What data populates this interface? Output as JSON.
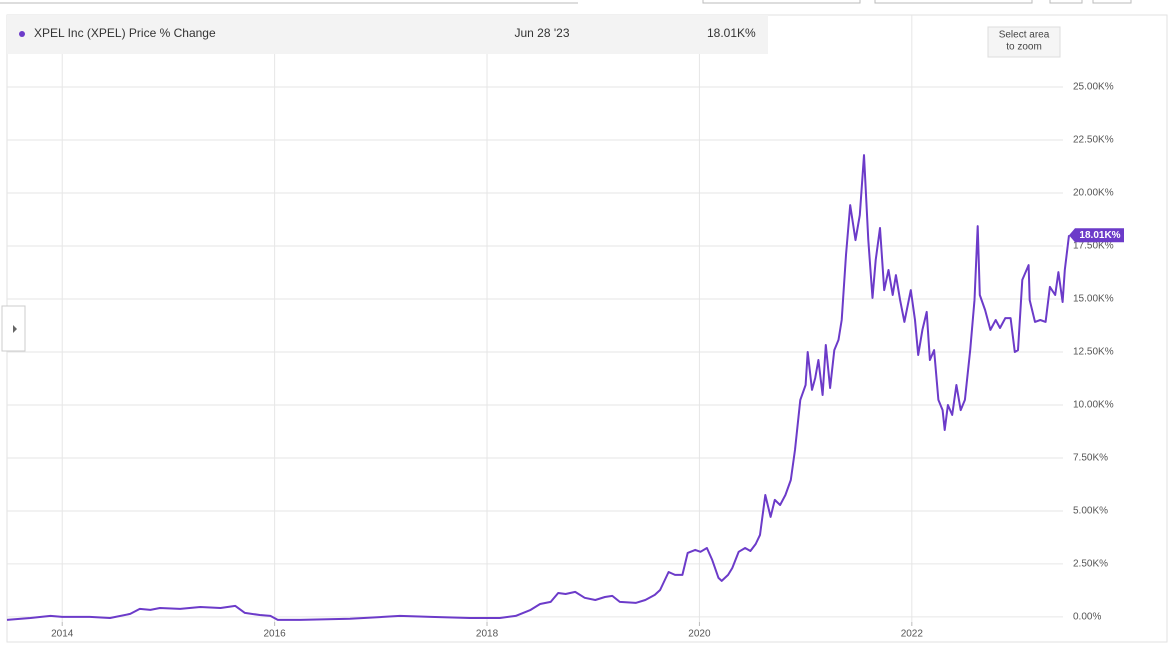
{
  "chart_data": {
    "type": "line",
    "series": [
      {
        "name": "XPEL Inc (XPEL) Price % Change",
        "color": "#6c3bc9",
        "last_date": "Jun 28 '23",
        "last_label": "18.01K%",
        "values": [
          -140,
          -50,
          50,
          0,
          0,
          -50,
          140,
          380,
          330,
          420,
          380,
          470,
          420,
          520,
          190,
          90,
          50,
          -140,
          -140,
          -90,
          50,
          0,
          -50,
          -50,
          50,
          330,
          610,
          710,
          1130,
          1080,
          1180,
          900,
          800,
          940,
          990,
          710,
          660,
          800,
          1040,
          1270,
          2120,
          1980,
          1980,
          3020,
          3160,
          3070,
          3250,
          2690,
          1840,
          1700,
          1980,
          2310,
          3070,
          3250,
          3110,
          3440,
          3870,
          5750,
          4720,
          5520,
          5280,
          5750,
          6460,
          7880,
          10240,
          10940,
          12500,
          10710,
          11270,
          12120,
          10470,
          12830,
          10800,
          12590,
          13070,
          14010,
          17080,
          19430,
          17780,
          18960,
          21790,
          17780,
          15050,
          16840,
          18350,
          15420,
          16370,
          15190,
          16130,
          14950,
          13920,
          15420,
          14010,
          12360,
          13540,
          14390,
          12120,
          12590,
          10240,
          9760,
          8820,
          10000,
          9530,
          10940,
          9760,
          10240,
          12590,
          14950,
          18440,
          15190,
          14480,
          13540,
          14010,
          13630,
          14100,
          14100,
          12500,
          12590,
          15900,
          16600,
          14950,
          13920,
          14010,
          13920,
          15570,
          15190,
          16270,
          14860,
          16370,
          18010
        ]
      }
    ],
    "x": [
      2013.48,
      2013.7,
      2013.89,
      2014.0,
      2014.26,
      2014.45,
      2014.64,
      2014.73,
      2014.83,
      2014.92,
      2015.11,
      2015.3,
      2015.49,
      2015.63,
      2015.72,
      2015.86,
      2015.96,
      2016.03,
      2016.24,
      2016.71,
      2017.18,
      2017.47,
      2017.84,
      2018.12,
      2018.27,
      2018.41,
      2018.5,
      2018.6,
      2018.67,
      2018.74,
      2018.83,
      2018.92,
      2019.02,
      2019.11,
      2019.18,
      2019.25,
      2019.4,
      2019.49,
      2019.58,
      2019.63,
      2019.71,
      2019.77,
      2019.84,
      2019.89,
      2019.96,
      2020.01,
      2020.07,
      2020.12,
      2020.18,
      2020.21,
      2020.27,
      2020.31,
      2020.37,
      2020.43,
      2020.48,
      2020.53,
      2020.57,
      2020.62,
      2020.67,
      2020.71,
      2020.76,
      2020.81,
      2020.86,
      2020.9,
      2020.95,
      2021.0,
      2021.02,
      2021.06,
      2021.09,
      2021.12,
      2021.16,
      2021.19,
      2021.23,
      2021.27,
      2021.31,
      2021.34,
      2021.38,
      2021.42,
      2021.47,
      2021.51,
      2021.55,
      2021.59,
      2021.63,
      2021.66,
      2021.7,
      2021.74,
      2021.78,
      2021.82,
      2021.85,
      2021.89,
      2021.93,
      2021.99,
      2022.03,
      2022.06,
      2022.1,
      2022.14,
      2022.17,
      2022.21,
      2022.25,
      2022.29,
      2022.31,
      2022.34,
      2022.38,
      2022.42,
      2022.46,
      2022.5,
      2022.55,
      2022.59,
      2022.62,
      2022.64,
      2022.69,
      2022.74,
      2022.79,
      2022.83,
      2022.88,
      2022.93,
      2022.97,
      2023.0,
      2023.04,
      2023.1,
      2023.11,
      2023.16,
      2023.21,
      2023.26,
      2023.3,
      2023.35,
      2023.38,
      2023.42,
      2023.44,
      2023.48
    ],
    "xlim": [
      2013.48,
      2023.48
    ],
    "xticks": [
      2014,
      2016,
      2018,
      2020,
      2022
    ],
    "ylim": [
      -240,
      28400
    ],
    "yticks": [
      {
        "value": 0,
        "label": "0.00%"
      },
      {
        "value": 2500,
        "label": "2.50K%"
      },
      {
        "value": 5000,
        "label": "5.00K%"
      },
      {
        "value": 7500,
        "label": "7.50K%"
      },
      {
        "value": 10000,
        "label": "10.00K%"
      },
      {
        "value": 12500,
        "label": "12.50K%"
      },
      {
        "value": 15000,
        "label": "15.00K%"
      },
      {
        "value": 17500,
        "label": "17.50K%"
      },
      {
        "value": 20000,
        "label": "20.00K%"
      },
      {
        "value": 22500,
        "label": "22.50K%"
      },
      {
        "value": 25000,
        "label": "25.00K%"
      }
    ],
    "grid": true,
    "zoom_button": [
      "Select area",
      "to zoom"
    ]
  }
}
